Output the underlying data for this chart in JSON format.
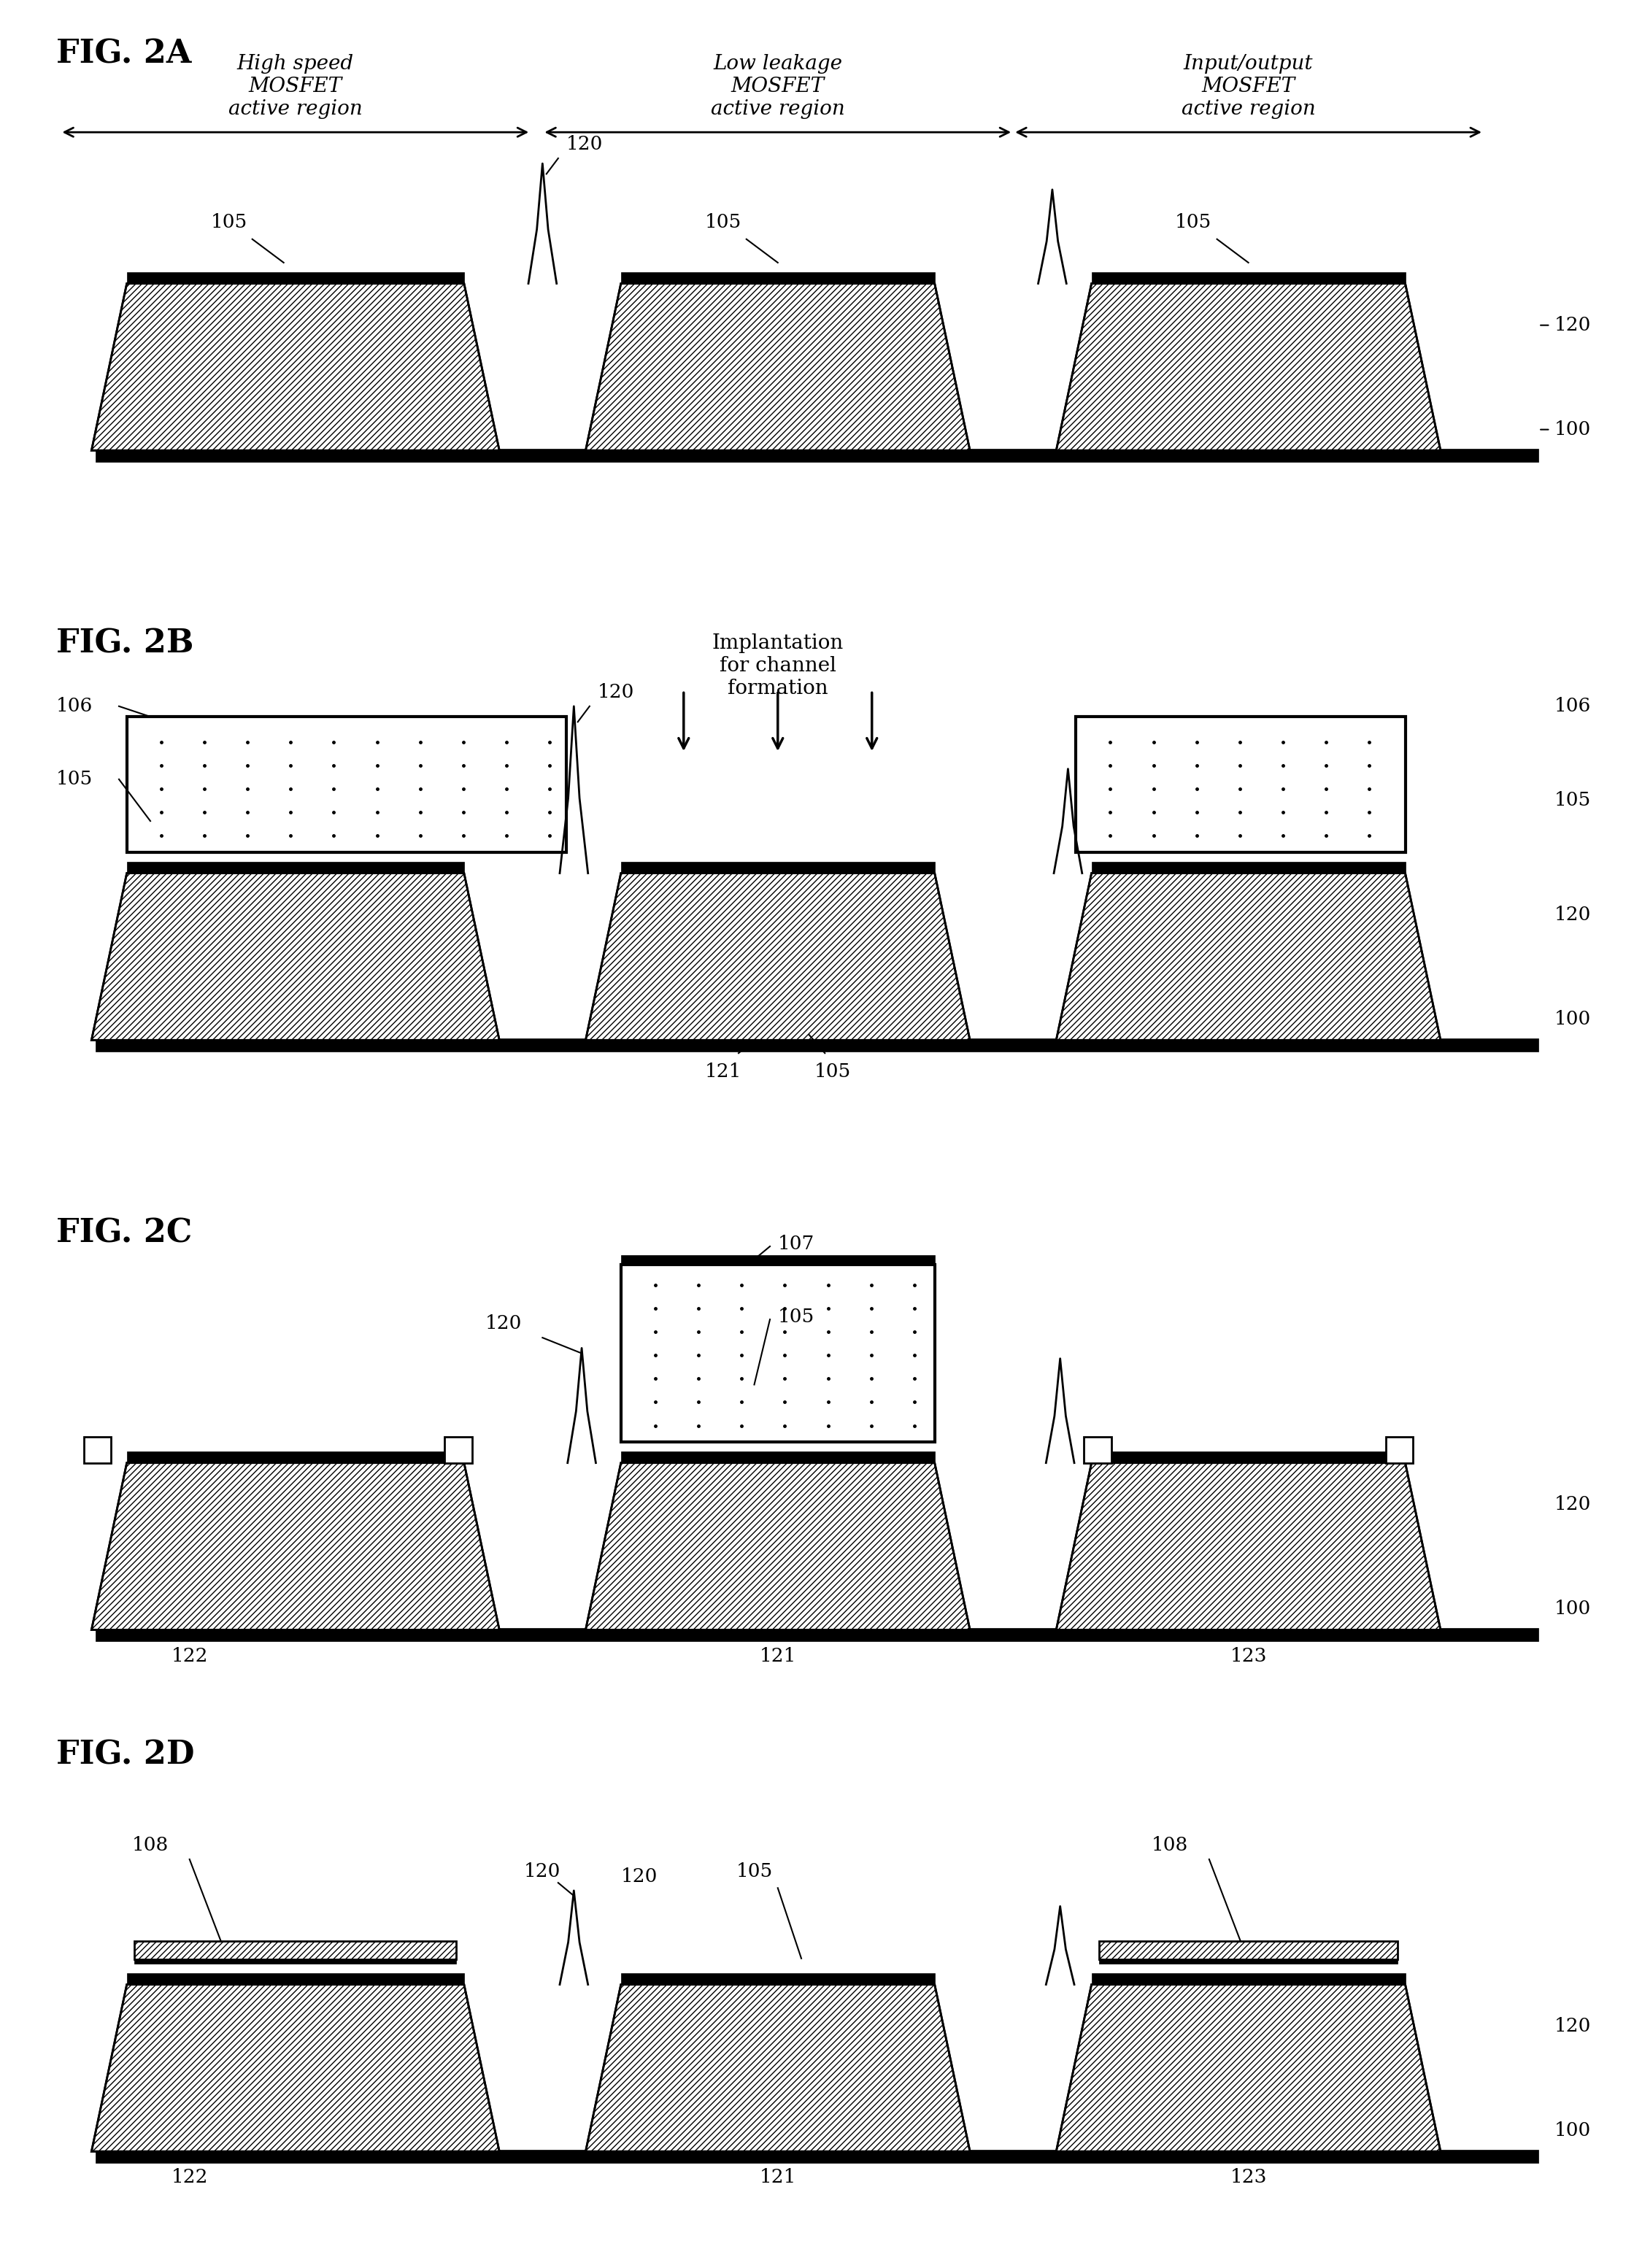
{
  "fig_labels": [
    "FIG. 2A",
    "FIG. 2B",
    "FIG. 2C",
    "FIG. 2D"
  ],
  "background_color": "#ffffff",
  "region_labels": [
    "High speed\nMOSFET\nactive region",
    "Low leakage\nMOSFET\nactive region",
    "Input/output\nMOSFET\nactive region"
  ],
  "implant_text": "Implantation\nfor channel\nformation",
  "label_fontsize": 20,
  "fig_fontsize": 32,
  "num_fontsize": 19
}
